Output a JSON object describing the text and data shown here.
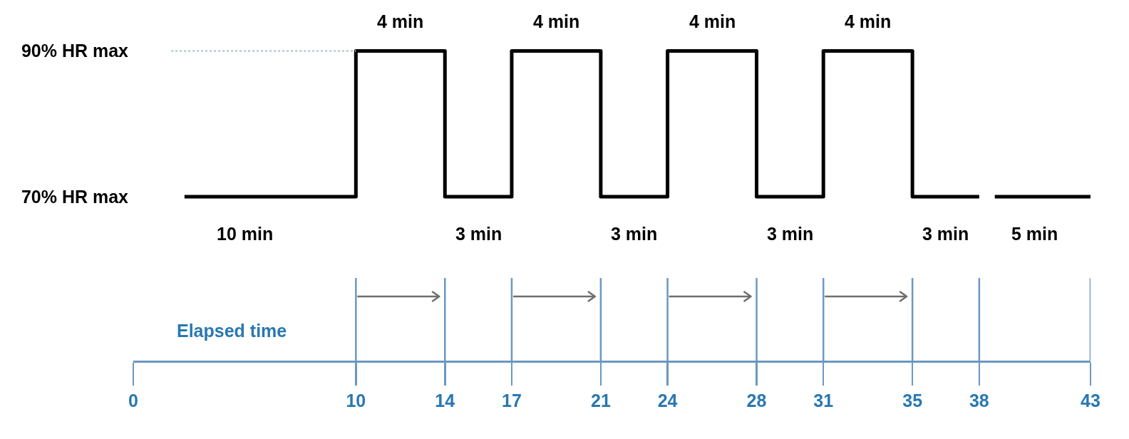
{
  "chart_data": {
    "type": "step",
    "xlabel": "Elapsed time",
    "series": [
      {
        "color": "#000000",
        "x": [
          2.3,
          10,
          14,
          17,
          21,
          24,
          28,
          31,
          35,
          38
        ],
        "values": [
          70,
          90,
          70,
          90,
          70,
          90,
          70,
          90,
          70,
          70
        ]
      },
      {
        "color": "#000000",
        "x": [
          38.7,
          43
        ],
        "values": [
          70,
          70
        ]
      },
      {
        "type": "line",
        "color": "#b0cbdc",
        "line_style": "dotted",
        "x": [
          1.7,
          10
        ],
        "values": [
          90,
          90
        ]
      }
    ],
    "xlim": [
      0,
      43
    ],
    "xticks": [
      0,
      10,
      14,
      17,
      21,
      24,
      28,
      31,
      35,
      38,
      43
    ],
    "ylim": [
      47.5,
      97
    ],
    "yticks": [
      {
        "value": 70,
        "label": "70% HR max"
      },
      {
        "value": 90,
        "label": "90% HR max"
      }
    ],
    "ref_lines": [
      {
        "axis": "x",
        "value": 10,
        "color": "#6b98c0"
      },
      {
        "axis": "x",
        "value": 14,
        "color": "#6b98c0"
      },
      {
        "axis": "x",
        "value": 17,
        "color": "#6b98c0"
      },
      {
        "axis": "x",
        "value": 21,
        "color": "#6b98c0"
      },
      {
        "axis": "x",
        "value": 24,
        "color": "#6b98c0"
      },
      {
        "axis": "x",
        "value": 28,
        "color": "#6b98c0"
      },
      {
        "axis": "x",
        "value": 31,
        "color": "#6b98c0"
      },
      {
        "axis": "x",
        "value": 35,
        "color": "#6b98c0"
      },
      {
        "axis": "x",
        "value": 38,
        "color": "#6b98c0"
      },
      {
        "axis": "x",
        "value": 43,
        "color": "#6b98c0"
      }
    ],
    "annotations": [
      {
        "text": "4 min",
        "x": 12,
        "y": 90
      },
      {
        "text": "4 min",
        "x": 19,
        "y": 90
      },
      {
        "text": "4 min",
        "x": 26,
        "y": 90
      },
      {
        "text": "4 min",
        "x": 33,
        "y": 90
      },
      {
        "text": "10 min",
        "x": 5,
        "y": 70
      },
      {
        "text": "3 min",
        "x": 15.5,
        "y": 70
      },
      {
        "text": "3 min",
        "x": 22.5,
        "y": 70
      },
      {
        "text": "3 min",
        "x": 29.5,
        "y": 70
      },
      {
        "text": "3 min",
        "x": 36.5,
        "y": 70
      },
      {
        "text": "5 min",
        "x": 40.5,
        "y": 70
      }
    ]
  }
}
